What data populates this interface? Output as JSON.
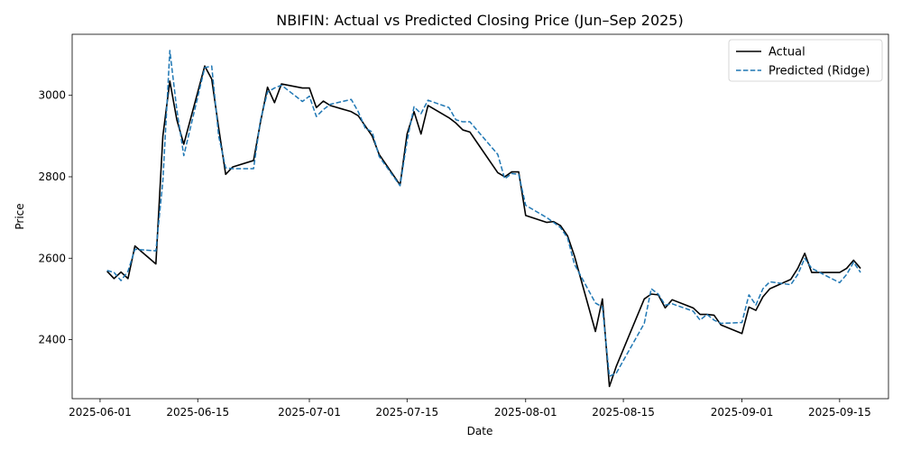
{
  "chart_data": {
    "type": "line",
    "title": "NBIFIN: Actual vs Predicted Closing Price (Jun–Sep 2025)",
    "xlabel": "Date",
    "ylabel": "Price",
    "xlim": [
      "2025-05-28",
      "2025-09-22"
    ],
    "ylim": [
      2255,
      3150
    ],
    "x_ticks": [
      "2025-06-01",
      "2025-06-15",
      "2025-07-01",
      "2025-07-15",
      "2025-08-01",
      "2025-08-15",
      "2025-09-01",
      "2025-09-15"
    ],
    "y_ticks": [
      2400,
      2600,
      2800,
      3000
    ],
    "grid": false,
    "legend_position": "top-right",
    "series": [
      {
        "name": "Actual",
        "color": "#000000",
        "style": "solid",
        "points": [
          [
            "2025-06-02",
            2568
          ],
          [
            "2025-06-03",
            2550
          ],
          [
            "2025-06-04",
            2566
          ],
          [
            "2025-06-05",
            2550
          ],
          [
            "2025-06-06",
            2630
          ],
          [
            "2025-06-09",
            2586
          ],
          [
            "2025-06-10",
            2900
          ],
          [
            "2025-06-11",
            3035
          ],
          [
            "2025-06-12",
            2940
          ],
          [
            "2025-06-13",
            2880
          ],
          [
            "2025-06-16",
            3072
          ],
          [
            "2025-06-17",
            3040
          ],
          [
            "2025-06-18",
            2920
          ],
          [
            "2025-06-19",
            2806
          ],
          [
            "2025-06-20",
            2824
          ],
          [
            "2025-06-23",
            2840
          ],
          [
            "2025-06-24",
            2935
          ],
          [
            "2025-06-25",
            3020
          ],
          [
            "2025-06-26",
            2982
          ],
          [
            "2025-06-27",
            3028
          ],
          [
            "2025-06-30",
            3018
          ],
          [
            "2025-07-01",
            3018
          ],
          [
            "2025-07-02",
            2970
          ],
          [
            "2025-07-03",
            2986
          ],
          [
            "2025-07-04",
            2975
          ],
          [
            "2025-07-07",
            2960
          ],
          [
            "2025-07-08",
            2950
          ],
          [
            "2025-07-09",
            2925
          ],
          [
            "2025-07-10",
            2900
          ],
          [
            "2025-07-11",
            2855
          ],
          [
            "2025-07-14",
            2780
          ],
          [
            "2025-07-15",
            2905
          ],
          [
            "2025-07-16",
            2960
          ],
          [
            "2025-07-17",
            2905
          ],
          [
            "2025-07-18",
            2975
          ],
          [
            "2025-07-21",
            2945
          ],
          [
            "2025-07-22",
            2932
          ],
          [
            "2025-07-23",
            2915
          ],
          [
            "2025-07-24",
            2910
          ],
          [
            "2025-07-25",
            2885
          ],
          [
            "2025-07-28",
            2810
          ],
          [
            "2025-07-29",
            2800
          ],
          [
            "2025-07-30",
            2812
          ],
          [
            "2025-07-31",
            2812
          ],
          [
            "2025-08-01",
            2705
          ],
          [
            "2025-08-04",
            2688
          ],
          [
            "2025-08-05",
            2690
          ],
          [
            "2025-08-06",
            2680
          ],
          [
            "2025-08-07",
            2655
          ],
          [
            "2025-08-08",
            2605
          ],
          [
            "2025-08-11",
            2420
          ],
          [
            "2025-08-12",
            2500
          ],
          [
            "2025-08-13",
            2285
          ],
          [
            "2025-08-14",
            2335
          ],
          [
            "2025-08-18",
            2500
          ],
          [
            "2025-08-19",
            2512
          ],
          [
            "2025-08-20",
            2510
          ],
          [
            "2025-08-21",
            2478
          ],
          [
            "2025-08-22",
            2498
          ],
          [
            "2025-08-25",
            2478
          ],
          [
            "2025-08-26",
            2462
          ],
          [
            "2025-08-27",
            2462
          ],
          [
            "2025-08-28",
            2460
          ],
          [
            "2025-08-29",
            2436
          ],
          [
            "2025-09-01",
            2415
          ],
          [
            "2025-09-02",
            2480
          ],
          [
            "2025-09-03",
            2472
          ],
          [
            "2025-09-04",
            2505
          ],
          [
            "2025-09-05",
            2525
          ],
          [
            "2025-09-08",
            2548
          ],
          [
            "2025-09-09",
            2575
          ],
          [
            "2025-09-10",
            2612
          ],
          [
            "2025-09-11",
            2565
          ],
          [
            "2025-09-15",
            2565
          ],
          [
            "2025-09-16",
            2575
          ],
          [
            "2025-09-17",
            2595
          ],
          [
            "2025-09-18",
            2575
          ]
        ]
      },
      {
        "name": "Predicted (Ridge)",
        "color": "#1f77b4",
        "style": "dashed",
        "points": [
          [
            "2025-06-02",
            2570
          ],
          [
            "2025-06-03",
            2565
          ],
          [
            "2025-06-04",
            2545
          ],
          [
            "2025-06-05",
            2568
          ],
          [
            "2025-06-06",
            2622
          ],
          [
            "2025-06-09",
            2618
          ],
          [
            "2025-06-10",
            2790
          ],
          [
            "2025-06-11",
            3110
          ],
          [
            "2025-06-12",
            2965
          ],
          [
            "2025-06-13",
            2852
          ],
          [
            "2025-06-16",
            3068
          ],
          [
            "2025-06-17",
            3072
          ],
          [
            "2025-06-18",
            2900
          ],
          [
            "2025-06-19",
            2822
          ],
          [
            "2025-06-20",
            2820
          ],
          [
            "2025-06-23",
            2820
          ],
          [
            "2025-06-24",
            2940
          ],
          [
            "2025-06-25",
            3008
          ],
          [
            "2025-06-26",
            3018
          ],
          [
            "2025-06-27",
            3025
          ],
          [
            "2025-06-30",
            2985
          ],
          [
            "2025-07-01",
            2998
          ],
          [
            "2025-07-02",
            2948
          ],
          [
            "2025-07-03",
            2965
          ],
          [
            "2025-07-04",
            2978
          ],
          [
            "2025-07-07",
            2990
          ],
          [
            "2025-07-08",
            2960
          ],
          [
            "2025-07-09",
            2920
          ],
          [
            "2025-07-10",
            2910
          ],
          [
            "2025-07-11",
            2850
          ],
          [
            "2025-07-14",
            2778
          ],
          [
            "2025-07-15",
            2888
          ],
          [
            "2025-07-16",
            2972
          ],
          [
            "2025-07-17",
            2955
          ],
          [
            "2025-07-18",
            2988
          ],
          [
            "2025-07-21",
            2970
          ],
          [
            "2025-07-22",
            2940
          ],
          [
            "2025-07-23",
            2935
          ],
          [
            "2025-07-24",
            2935
          ],
          [
            "2025-07-25",
            2915
          ],
          [
            "2025-07-28",
            2855
          ],
          [
            "2025-07-29",
            2795
          ],
          [
            "2025-07-30",
            2808
          ],
          [
            "2025-07-31",
            2806
          ],
          [
            "2025-08-01",
            2730
          ],
          [
            "2025-08-04",
            2700
          ],
          [
            "2025-08-05",
            2688
          ],
          [
            "2025-08-06",
            2675
          ],
          [
            "2025-08-07",
            2650
          ],
          [
            "2025-08-08",
            2585
          ],
          [
            "2025-08-11",
            2490
          ],
          [
            "2025-08-12",
            2480
          ],
          [
            "2025-08-13",
            2310
          ],
          [
            "2025-08-14",
            2318
          ],
          [
            "2025-08-18",
            2440
          ],
          [
            "2025-08-19",
            2525
          ],
          [
            "2025-08-20",
            2512
          ],
          [
            "2025-08-21",
            2485
          ],
          [
            "2025-08-22",
            2488
          ],
          [
            "2025-08-25",
            2470
          ],
          [
            "2025-08-26",
            2448
          ],
          [
            "2025-08-27",
            2462
          ],
          [
            "2025-08-28",
            2448
          ],
          [
            "2025-08-29",
            2440
          ],
          [
            "2025-09-01",
            2442
          ],
          [
            "2025-09-02",
            2510
          ],
          [
            "2025-09-03",
            2485
          ],
          [
            "2025-09-04",
            2525
          ],
          [
            "2025-09-05",
            2542
          ],
          [
            "2025-09-08",
            2535
          ],
          [
            "2025-09-09",
            2560
          ],
          [
            "2025-09-10",
            2600
          ],
          [
            "2025-09-11",
            2575
          ],
          [
            "2025-09-15",
            2540
          ],
          [
            "2025-09-16",
            2560
          ],
          [
            "2025-09-17",
            2590
          ],
          [
            "2025-09-18",
            2565
          ]
        ]
      }
    ]
  }
}
